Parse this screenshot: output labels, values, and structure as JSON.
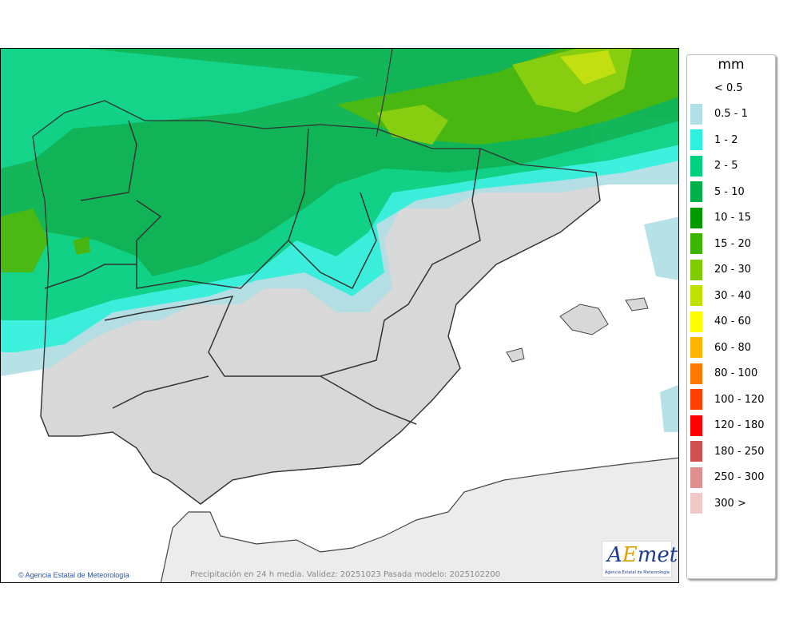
{
  "legend": {
    "unit": "mm",
    "items": [
      {
        "label": "< 0.5",
        "color": null
      },
      {
        "label": "0.5 - 1",
        "color": "#b0dfe5"
      },
      {
        "label": "1 - 2",
        "color": "#2ef0dc"
      },
      {
        "label": "2 - 5",
        "color": "#00d17f"
      },
      {
        "label": "5 - 10",
        "color": "#00b04a"
      },
      {
        "label": "10 - 15",
        "color": "#009a00"
      },
      {
        "label": "15 - 20",
        "color": "#3cb400"
      },
      {
        "label": "20 - 30",
        "color": "#80cc00"
      },
      {
        "label": "30 - 40",
        "color": "#c0e000"
      },
      {
        "label": "40 - 60",
        "color": "#ffff00"
      },
      {
        "label": "60 - 80",
        "color": "#ffb400"
      },
      {
        "label": "80 - 100",
        "color": "#ff7800"
      },
      {
        "label": "100 - 120",
        "color": "#ff4000"
      },
      {
        "label": "120 - 180",
        "color": "#ff0000"
      },
      {
        "label": "180 - 250",
        "color": "#d05050"
      },
      {
        "label": "250 - 300",
        "color": "#e09090"
      },
      {
        "label": "300 >",
        "color": "#f0c8c8"
      }
    ]
  },
  "footer": {
    "credit": "Agencia Estatal de Meteorología",
    "caption": "Precipitación en 24 h media. Validez: 20251023 Pasada modelo: 2025102200"
  },
  "logo": {
    "text": "AEmet",
    "subtitle": "Agencia Estatal de Meteorología"
  }
}
